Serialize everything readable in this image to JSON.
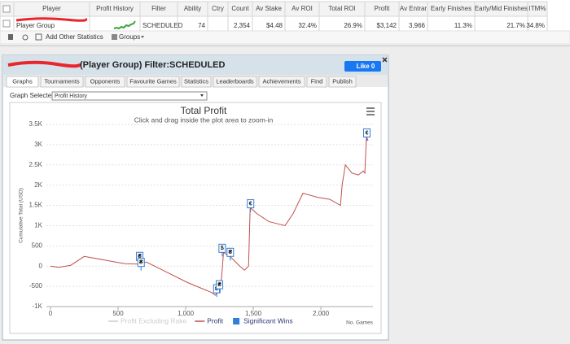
{
  "table": {
    "header": [
      "Player",
      "Profit History",
      "Filter",
      "Ability",
      "Ctry",
      "Count",
      "Av Stake",
      "Av ROI",
      "Total ROI",
      "Profit",
      "Av Entrar",
      "Early Finishes",
      "Early/Mid Finishes",
      "ITM%"
    ],
    "rows": [
      [
        "Player Group",
        null,
        "SCHEDULED",
        "74",
        null,
        "2,354",
        "$4.48",
        "32.4%",
        "26.9%",
        "$3,142",
        "3,966",
        "11.3%",
        "21.7%",
        "34.8%"
      ]
    ]
  },
  "toolbar": {
    "add_stats": "Add Other Statistics",
    "groups": "Groups"
  },
  "dialog": {
    "title": "(Player Group) Filter:SCHEDULED",
    "like": "Like 0",
    "tabs": [
      "Graphs",
      "Tournaments",
      "Opponents",
      "Favourite Games",
      "Statistics",
      "Leaderboards",
      "Achievements",
      "Find",
      "Publish"
    ],
    "graph_selected_label": "Graph Selected:",
    "graph_selected": "Profit History"
  },
  "chart_data": {
    "type": "line",
    "title": "Total Profit",
    "subtitle": "Click and drag inside the plot area to zoom-in",
    "ylabel": "Cumulative Total (USD)",
    "xlabel": "No. Games",
    "xlim": [
      -30,
      2385
    ],
    "ylim": [
      -1000,
      3500
    ],
    "xticks": [
      0,
      500,
      {
        "value": 1000,
        "label": "1,000"
      },
      {
        "value": 1500,
        "label": "1,500"
      },
      {
        "value": 2000,
        "label": "2,000"
      }
    ],
    "yticks": [
      {
        "value": 3500,
        "label": "3.5K"
      },
      {
        "value": 3000,
        "label": "3K"
      },
      {
        "value": 2500,
        "label": "2.5K"
      },
      {
        "value": 2000,
        "label": "2K"
      },
      {
        "value": 1500,
        "label": "1.5K"
      },
      {
        "value": 1000,
        "label": "1K"
      },
      500,
      0,
      -500,
      {
        "value": -1000,
        "label": "-1K"
      }
    ],
    "grid": true,
    "series": [
      {
        "name": "Profit Excluding Rake",
        "color": "#cccccc",
        "visible": false
      },
      {
        "name": "Profit",
        "color": "#c0504d",
        "type": "line",
        "x": [
          0,
          60,
          150,
          250,
          400,
          550,
          650,
          710,
          830,
          1010,
          1190,
          1220,
          1240,
          1265,
          1280,
          1340,
          1400,
          1435,
          1465,
          1477,
          1525,
          1615,
          1735,
          1795,
          1867,
          1976,
          2066,
          2145,
          2157,
          2181,
          2229,
          2277,
          2313,
          2325,
          2337,
          2349
        ],
        "values": [
          0,
          -30,
          20,
          240,
          150,
          60,
          50,
          100,
          -100,
          -400,
          -650,
          -720,
          -600,
          -300,
          340,
          200,
          0,
          -100,
          0,
          1450,
          1300,
          1100,
          1000,
          1300,
          1800,
          1700,
          1650,
          1500,
          2000,
          2500,
          2300,
          2250,
          2350,
          2300,
          3200,
          3100
        ]
      },
      {
        "name": "Significant Wins",
        "color": "#2f7ed8",
        "type": "flag",
        "x": [
          660,
          670,
          1230,
          1250,
          1270,
          1330,
          1480,
          2340
        ],
        "values": [
          200,
          50,
          -600,
          -500,
          400,
          300,
          1500,
          3250
        ],
        "labels": [
          "₴",
          "₴",
          "₴",
          "₴",
          "$",
          "₴",
          "€",
          "€"
        ]
      }
    ]
  }
}
